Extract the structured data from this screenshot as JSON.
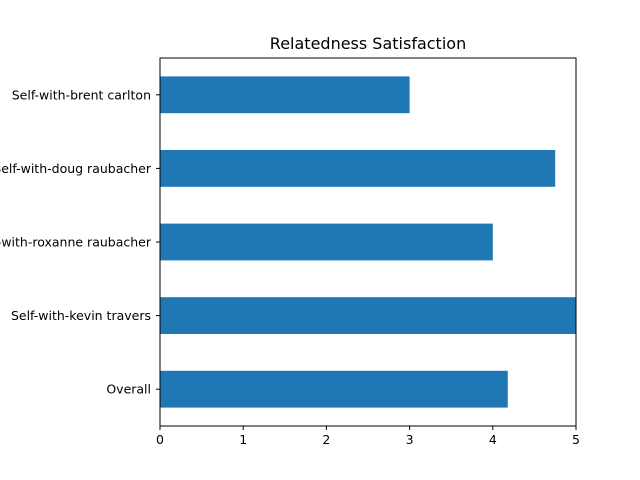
{
  "chart_data": {
    "type": "bar",
    "orientation": "horizontal",
    "title": "Relatedness Satisfaction",
    "categories": [
      "Overall",
      "Self-with-kevin travers",
      "Self-with-roxanne raubacher ",
      "Self-with-doug raubacher ",
      "Self-with-brent carlton"
    ],
    "values": [
      4.18,
      5.0,
      4.0,
      4.75,
      3.0
    ],
    "xlim": [
      0,
      5
    ],
    "xticks": [
      0,
      1,
      2,
      3,
      4,
      5
    ],
    "xlabel": "",
    "ylabel": "",
    "grid": false,
    "bar_color": "#1f77b4"
  }
}
